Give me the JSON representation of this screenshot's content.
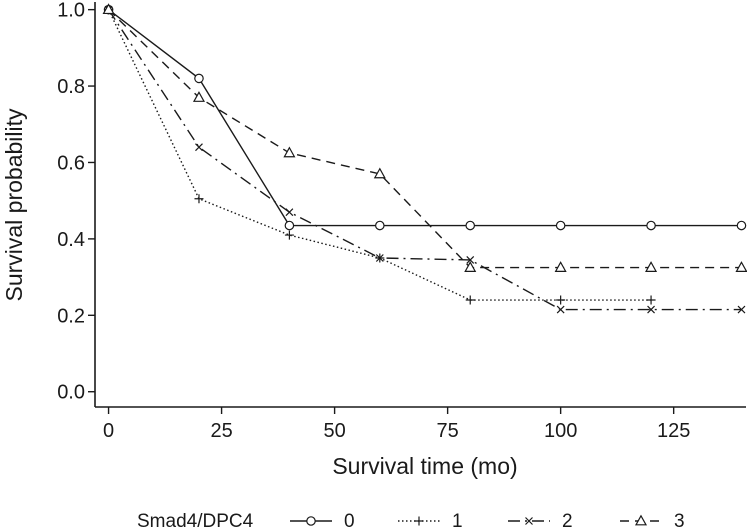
{
  "chart_data": {
    "type": "line",
    "title": "",
    "xlabel": "Survival time (mo)",
    "ylabel": "Survival probability",
    "xlim": [
      -3,
      141
    ],
    "ylim": [
      -0.04,
      1.02
    ],
    "xticks": [
      0,
      25,
      50,
      75,
      100,
      125
    ],
    "yticks": [
      0.0,
      0.2,
      0.4,
      0.6,
      0.8,
      1.0
    ],
    "xtick_labels": [
      "0",
      "25",
      "50",
      "75",
      "100",
      "125"
    ],
    "ytick_labels": [
      "0.0",
      "0.2",
      "0.4",
      "0.6",
      "0.8",
      "1.0"
    ],
    "legend_title": "Smad4/DPC4",
    "legend_position": "bottom",
    "series": [
      {
        "name": "0",
        "marker": "circle",
        "dash": "solid",
        "x": [
          0,
          20,
          40,
          60,
          80,
          100,
          120,
          140
        ],
        "y": [
          1.0,
          0.82,
          0.435,
          0.435,
          0.435,
          0.435,
          0.435,
          0.435
        ]
      },
      {
        "name": "1",
        "marker": "plus",
        "dash": "dotted",
        "x": [
          0,
          20,
          40,
          60,
          80,
          100,
          120
        ],
        "y": [
          1.0,
          0.505,
          0.41,
          0.35,
          0.24,
          0.24,
          0.24
        ]
      },
      {
        "name": "2",
        "marker": "cross",
        "dash": "dashdot",
        "x": [
          0,
          20,
          40,
          60,
          80,
          100,
          120,
          140
        ],
        "y": [
          1.0,
          0.64,
          0.47,
          0.35,
          0.345,
          0.215,
          0.215,
          0.215
        ]
      },
      {
        "name": "3",
        "marker": "triangle",
        "dash": "dashed",
        "x": [
          0,
          20,
          40,
          60,
          80,
          100,
          120,
          140
        ],
        "y": [
          1.0,
          0.77,
          0.625,
          0.57,
          0.325,
          0.325,
          0.325,
          0.325
        ]
      }
    ]
  }
}
